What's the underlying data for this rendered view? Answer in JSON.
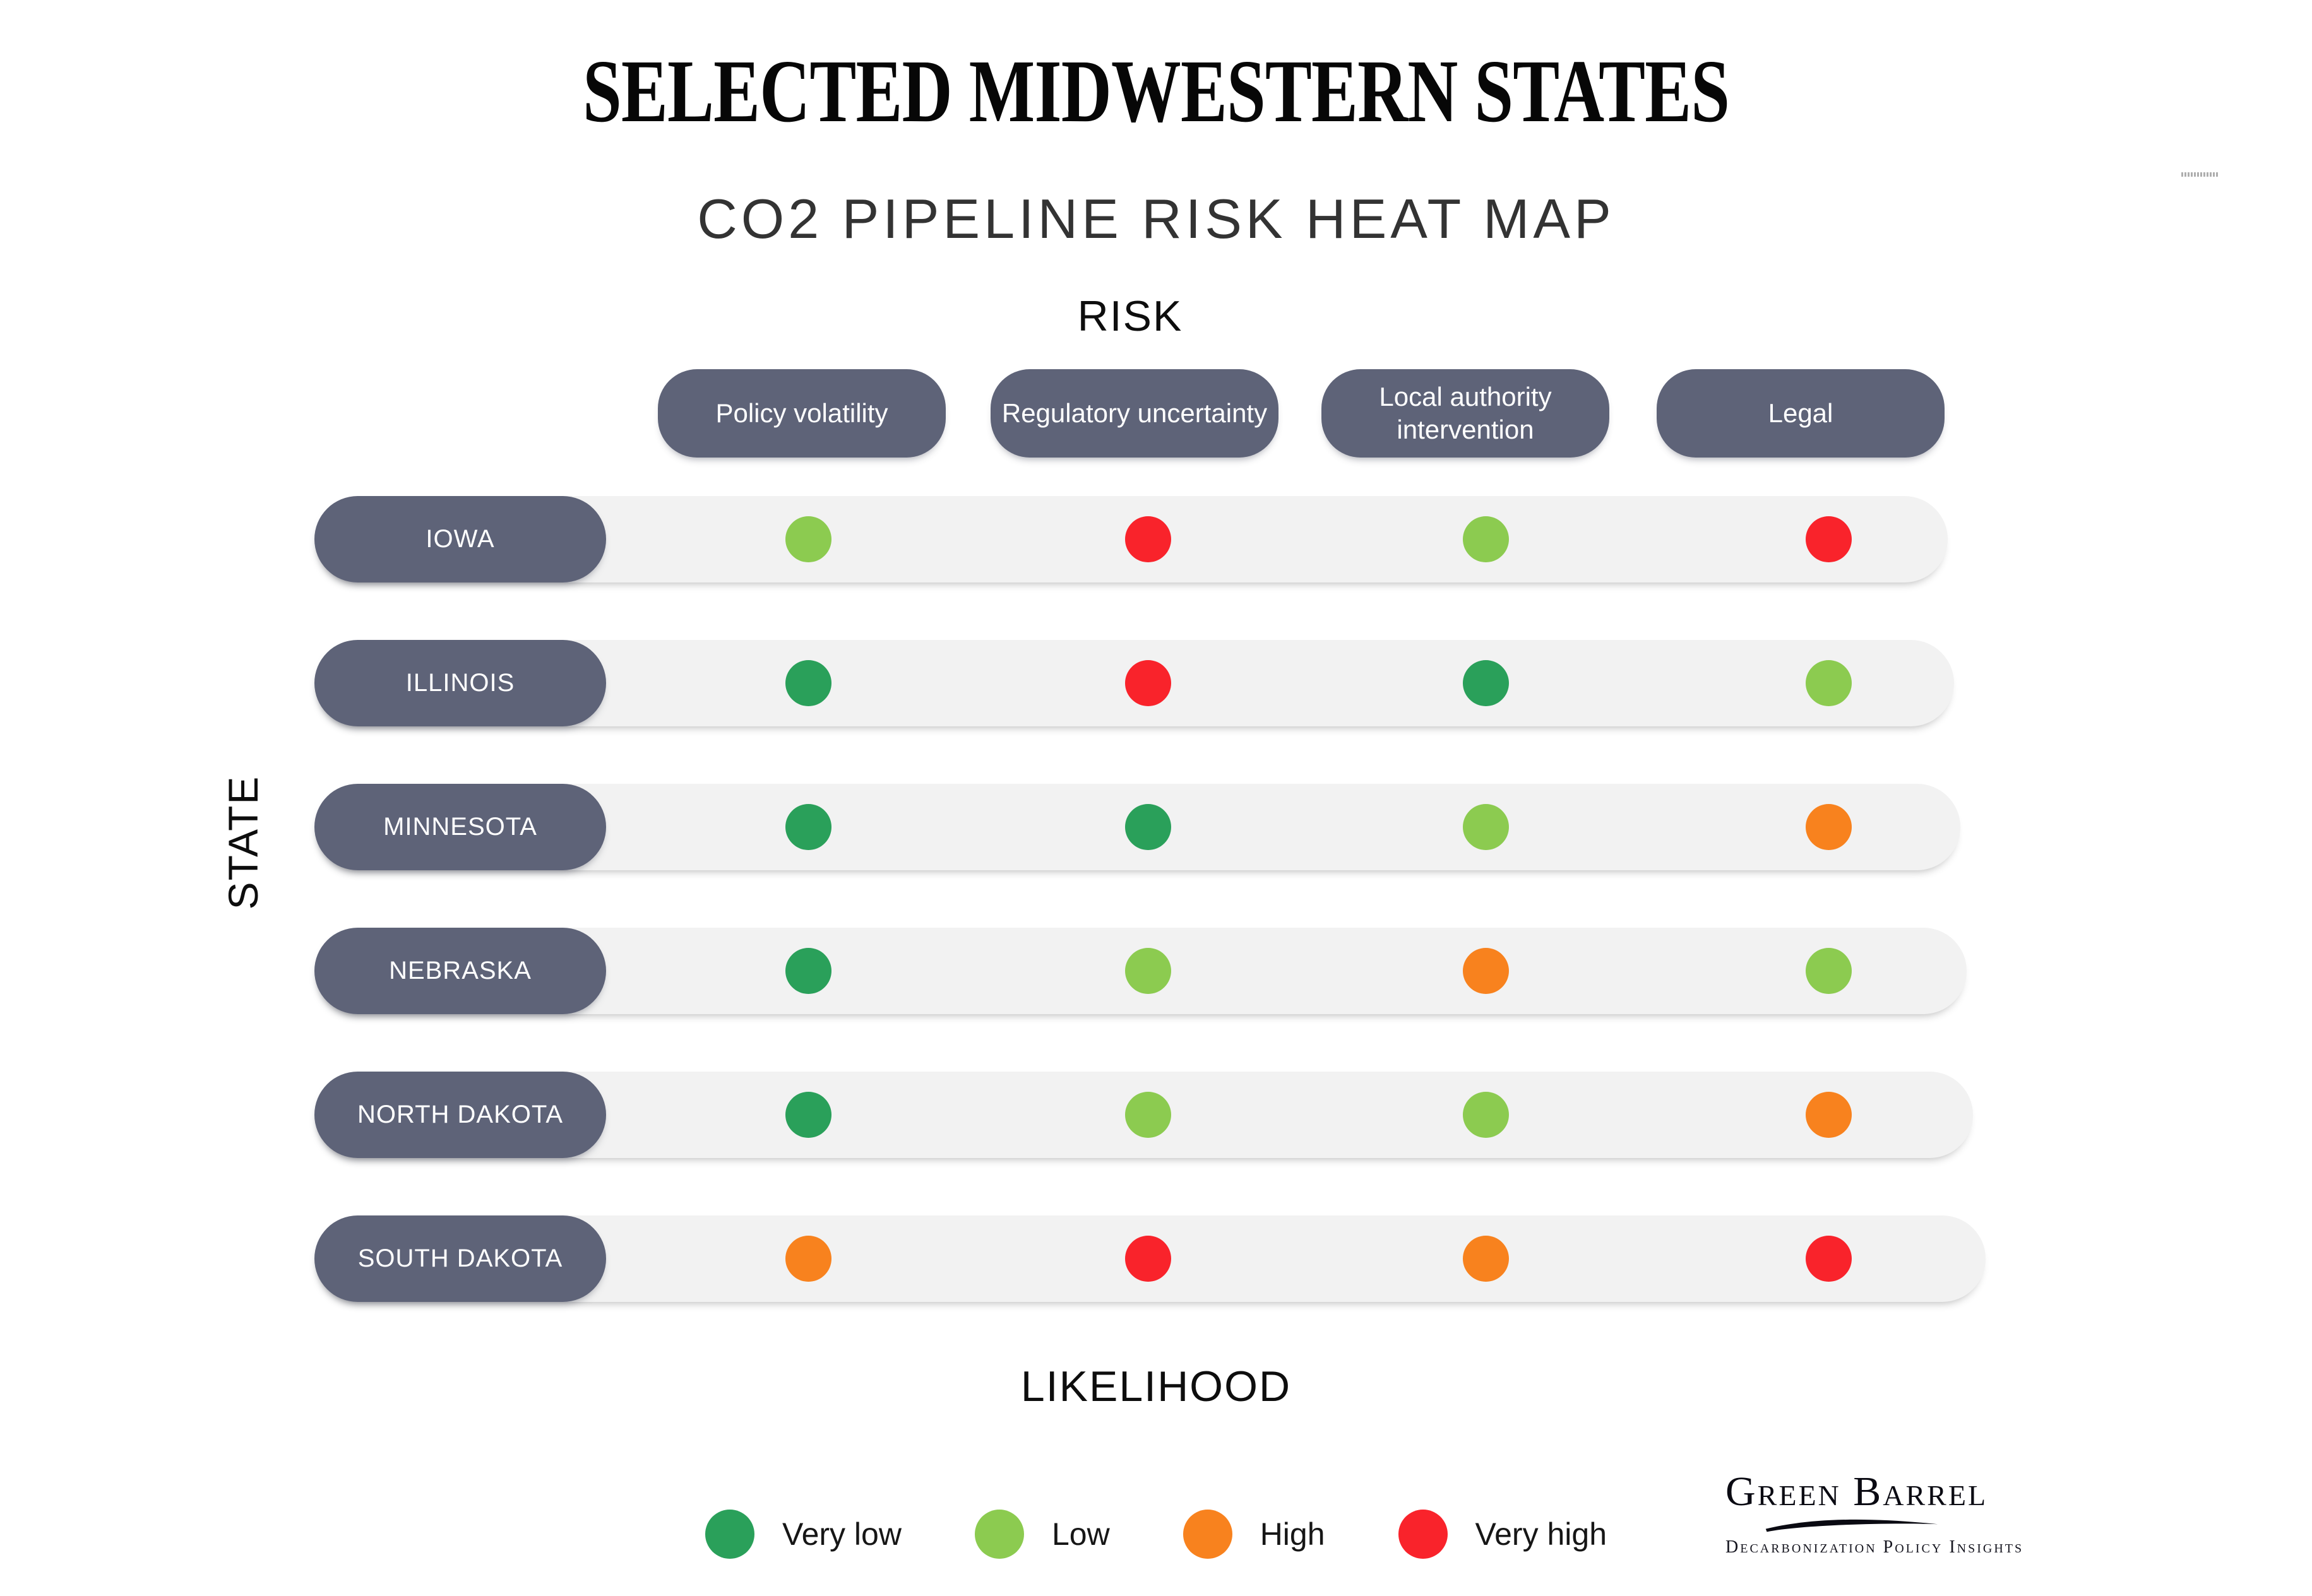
{
  "page": {
    "title": "SELECTED MIDWESTERN STATES",
    "subtitle": "CO2 PIPELINE RISK HEAT MAP"
  },
  "axes": {
    "top": "RISK",
    "left": "STATE",
    "bottom": "LIKELIHOOD"
  },
  "chart_data": {
    "type": "heatmap",
    "title": "CO2 PIPELINE RISK HEAT MAP",
    "x_axis_title": "RISK",
    "y_axis_title": "STATE",
    "value_axis_title": "LIKELIHOOD",
    "columns": [
      "Policy volatility",
      "Regulatory uncertainty",
      "Local authority intervention",
      "Legal"
    ],
    "rows": [
      "IOWA",
      "ILLINOIS",
      "MINNESOTA",
      "NEBRASKA",
      "NORTH DAKOTA",
      "SOUTH DAKOTA"
    ],
    "values": [
      [
        "Low",
        "Very high",
        "Low",
        "Very high"
      ],
      [
        "Very low",
        "Very high",
        "Very low",
        "Low"
      ],
      [
        "Very low",
        "Very low",
        "Low",
        "High"
      ],
      [
        "Very low",
        "Low",
        "High",
        "Low"
      ],
      [
        "Very low",
        "Low",
        "Low",
        "High"
      ],
      [
        "High",
        "Very high",
        "High",
        "Very high"
      ]
    ],
    "levels": [
      {
        "label": "Very low",
        "color": "#2aa05a"
      },
      {
        "label": "Low",
        "color": "#8ccb50"
      },
      {
        "label": "High",
        "color": "#f8821e"
      },
      {
        "label": "Very high",
        "color": "#f9232b"
      }
    ],
    "legend_position": "bottom"
  },
  "branding": {
    "name": "Green Barrel",
    "tagline": "Decarbonization Policy Insights"
  },
  "colors": {
    "header_pill": "#5e6378",
    "row_track": "#f2f2f2",
    "very_low": "#2aa05a",
    "low": "#8ccb50",
    "high": "#f8821e",
    "very_high": "#f9232b"
  }
}
